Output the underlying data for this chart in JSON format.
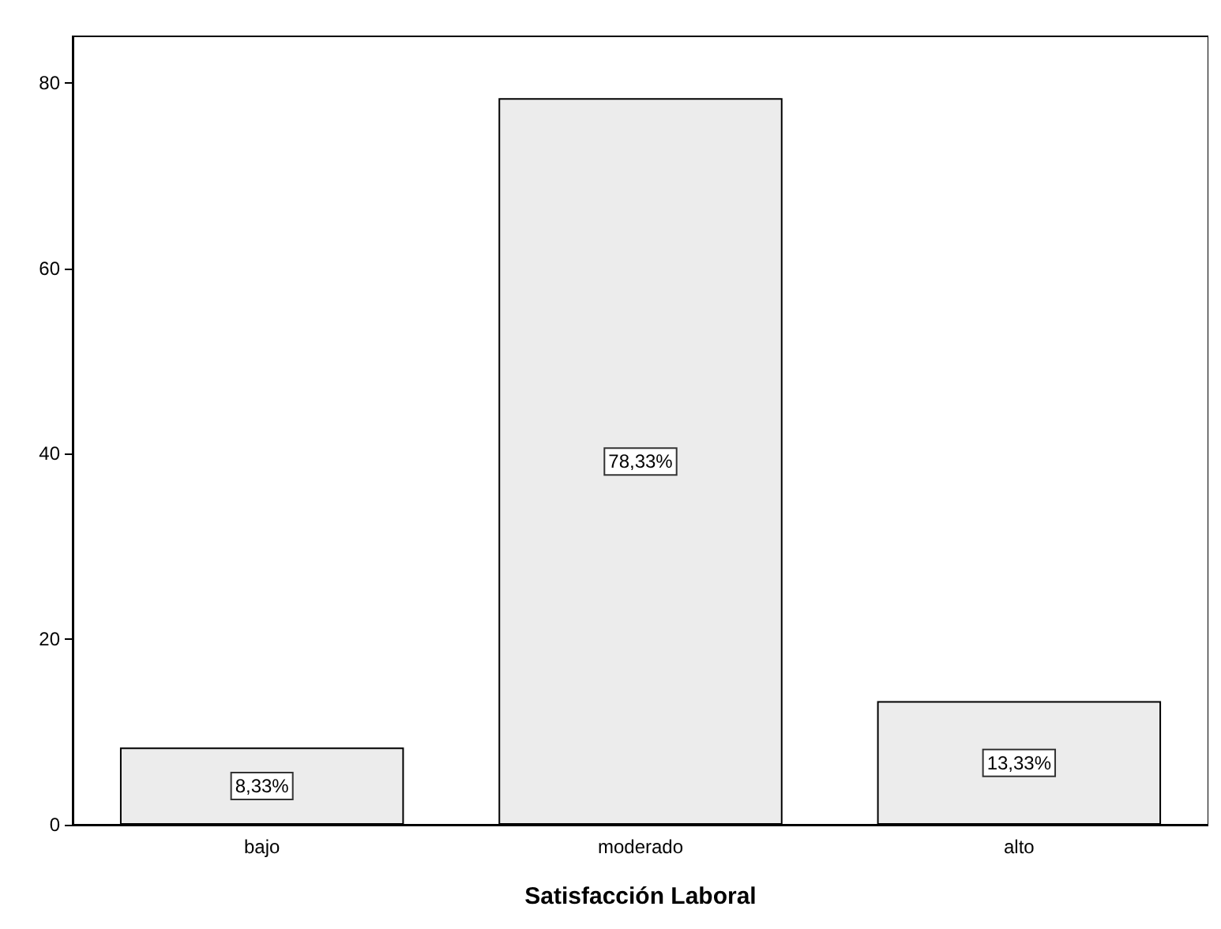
{
  "chart_data": {
    "type": "bar",
    "xlabel": "Satisfacción Laboral",
    "categories": [
      "bajo",
      "moderado",
      "alto"
    ],
    "values": [
      8.33,
      78.33,
      13.33
    ],
    "value_labels": [
      "8,33%",
      "78,33%",
      "13,33%"
    ],
    "color": "#ececec",
    "ylim": [
      0,
      85
    ],
    "yticks": [
      0,
      20,
      40,
      60,
      80
    ],
    "grid": false
  }
}
